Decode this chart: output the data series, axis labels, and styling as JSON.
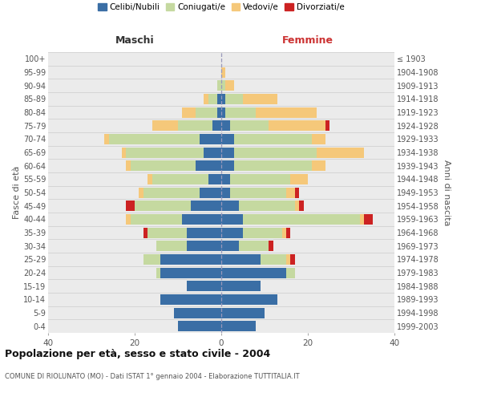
{
  "age_groups": [
    "0-4",
    "5-9",
    "10-14",
    "15-19",
    "20-24",
    "25-29",
    "30-34",
    "35-39",
    "40-44",
    "45-49",
    "50-54",
    "55-59",
    "60-64",
    "65-69",
    "70-74",
    "75-79",
    "80-84",
    "85-89",
    "90-94",
    "95-99",
    "100+"
  ],
  "birth_years": [
    "1999-2003",
    "1994-1998",
    "1989-1993",
    "1984-1988",
    "1979-1983",
    "1974-1978",
    "1969-1973",
    "1964-1968",
    "1959-1963",
    "1954-1958",
    "1949-1953",
    "1944-1948",
    "1939-1943",
    "1934-1938",
    "1929-1933",
    "1924-1928",
    "1919-1923",
    "1914-1918",
    "1909-1913",
    "1904-1908",
    "≤ 1903"
  ],
  "maschi_celibi": [
    10,
    11,
    14,
    8,
    14,
    14,
    8,
    8,
    9,
    7,
    5,
    3,
    6,
    4,
    5,
    2,
    1,
    1,
    0,
    0,
    0
  ],
  "maschi_coniugati": [
    0,
    0,
    0,
    0,
    1,
    4,
    7,
    9,
    12,
    13,
    13,
    13,
    15,
    18,
    21,
    8,
    5,
    2,
    1,
    0,
    0
  ],
  "maschi_vedovi": [
    0,
    0,
    0,
    0,
    0,
    0,
    0,
    0,
    1,
    0,
    1,
    1,
    1,
    1,
    1,
    6,
    3,
    1,
    0,
    0,
    0
  ],
  "maschi_divorziati": [
    0,
    0,
    0,
    0,
    0,
    0,
    0,
    1,
    0,
    2,
    0,
    0,
    0,
    0,
    0,
    0,
    0,
    0,
    0,
    0,
    0
  ],
  "femmine_nubili": [
    8,
    10,
    13,
    9,
    15,
    9,
    4,
    5,
    5,
    4,
    2,
    2,
    3,
    3,
    3,
    2,
    1,
    1,
    0,
    0,
    0
  ],
  "femmine_coniugate": [
    0,
    0,
    0,
    0,
    2,
    6,
    7,
    9,
    27,
    13,
    13,
    14,
    18,
    19,
    18,
    9,
    7,
    4,
    1,
    0,
    0
  ],
  "femmine_vedove": [
    0,
    0,
    0,
    0,
    0,
    1,
    0,
    1,
    1,
    1,
    2,
    4,
    3,
    11,
    3,
    13,
    14,
    8,
    2,
    1,
    0
  ],
  "femmine_divorziate": [
    0,
    0,
    0,
    0,
    0,
    1,
    1,
    1,
    2,
    1,
    1,
    0,
    0,
    0,
    0,
    1,
    0,
    0,
    0,
    0,
    0
  ],
  "colors": {
    "celibi": "#3a6ea5",
    "coniugati": "#c5d9a0",
    "vedovi": "#f5c87a",
    "divorziati": "#cc2222"
  },
  "title": "Popolazione per età, sesso e stato civile - 2004",
  "subtitle": "COMUNE DI RIOLUNATO (MO) - Dati ISTAT 1° gennaio 2004 - Elaborazione TUTTITALIA.IT",
  "header_left": "Maschi",
  "header_right": "Femmine",
  "ylabel_left": "Fasce di età",
  "ylabel_right": "Anni di nascita",
  "xlim": 40,
  "legend_labels": [
    "Celibi/Nubili",
    "Coniugati/e",
    "Vedovi/e",
    "Divorziati/e"
  ]
}
